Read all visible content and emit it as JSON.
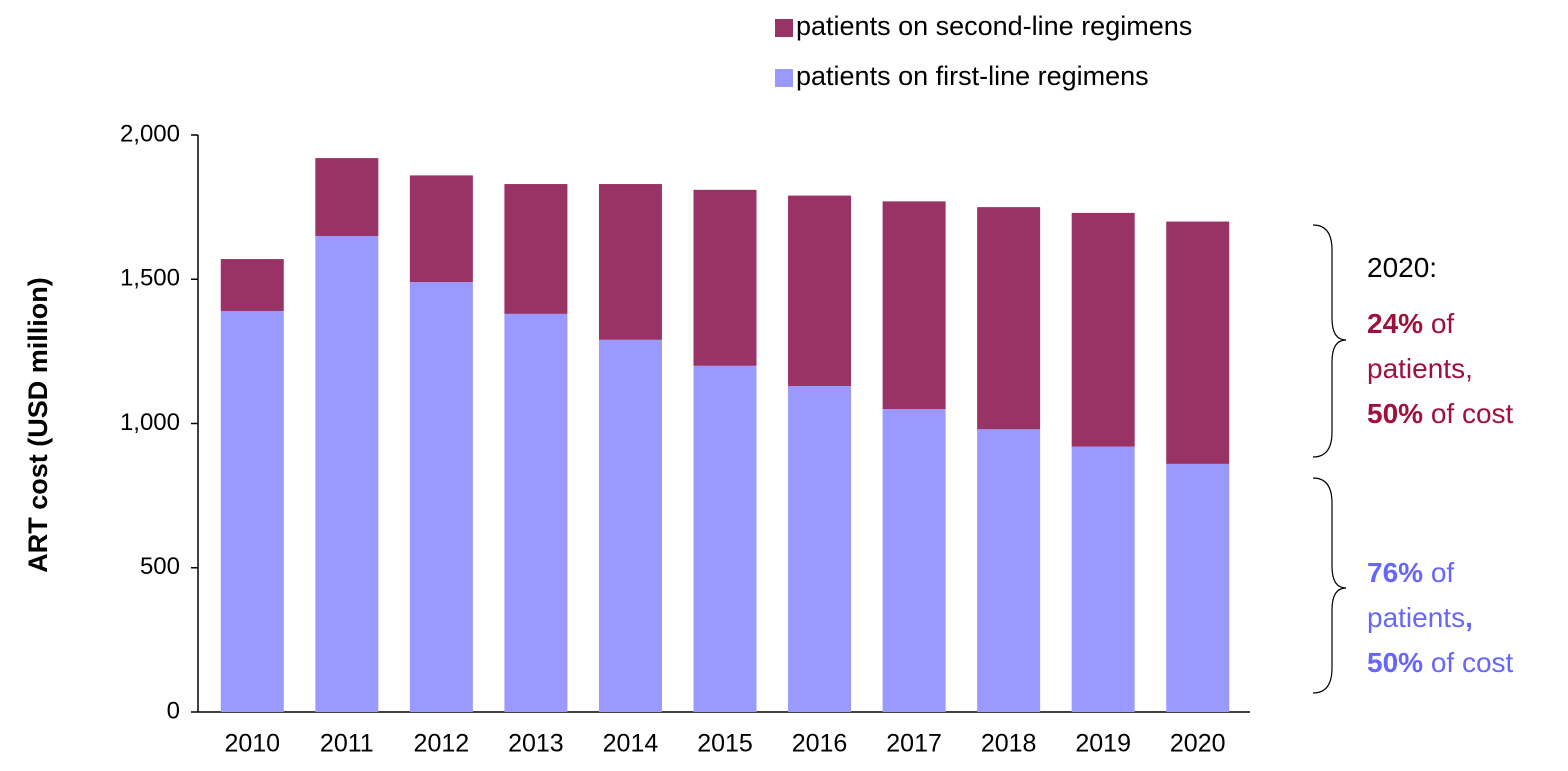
{
  "chart_data": {
    "type": "stacked_bar",
    "y_label": "ART cost (USD million)",
    "categories": [
      "2010",
      "2011",
      "2012",
      "2013",
      "2014",
      "2015",
      "2016",
      "2017",
      "2018",
      "2019",
      "2020"
    ],
    "series": [
      {
        "name": "patients on first-line regimens",
        "color": "#9999ff",
        "values": [
          1390,
          1650,
          1490,
          1380,
          1290,
          1200,
          1130,
          1050,
          980,
          920,
          860
        ]
      },
      {
        "name": "patients on second-line regimens",
        "color": "#993366",
        "values": [
          180,
          270,
          370,
          450,
          540,
          610,
          660,
          720,
          770,
          810,
          840
        ]
      }
    ],
    "ylim": [
      0,
      2000
    ],
    "yticks": [
      0,
      {
        "value": 500,
        "label": "500"
      },
      {
        "value": 1000,
        "label": "1,000"
      },
      {
        "value": 1500,
        "label": "1,500"
      },
      {
        "value": 2000,
        "label": "2,000"
      }
    ],
    "annotations": [
      {
        "color": "#000000",
        "lines": [
          [
            {
              "text": "2020:",
              "bold": false
            }
          ]
        ]
      },
      {
        "color": "#a0103c",
        "lines": [
          [
            {
              "text": "24%",
              "bold": true
            },
            {
              "text": " of",
              "bold": false
            }
          ],
          [
            {
              "text": "patients,",
              "bold": false
            }
          ],
          [
            {
              "text": "50%",
              "bold": true
            },
            {
              "text": " of cost",
              "bold": false
            }
          ]
        ]
      },
      {
        "color": "#6666ff",
        "lines": [
          [
            {
              "text": "76%",
              "bold": true
            },
            {
              "text": " of",
              "bold": false
            }
          ],
          [
            {
              "text": "patients",
              "bold": false
            },
            {
              "text": ",",
              "bold": true
            }
          ],
          [
            {
              "text": "50%",
              "bold": true
            },
            {
              "text": " of cost",
              "bold": false
            }
          ]
        ]
      }
    ]
  }
}
